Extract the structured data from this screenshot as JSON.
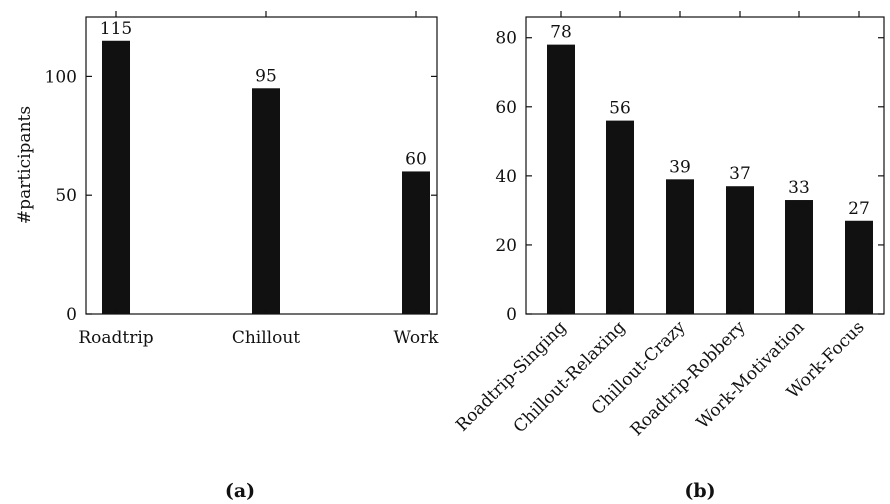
{
  "chart_data": [
    {
      "type": "bar",
      "categories": [
        "Roadtrip",
        "Chillout",
        "Work"
      ],
      "values": [
        115,
        95,
        60
      ],
      "data_labels": [
        "115",
        "95",
        "60"
      ],
      "ylabel": "#participants",
      "ylim": [
        0,
        125
      ],
      "yticks": [
        0,
        50,
        100
      ],
      "ytick_labels": [
        "0",
        "50",
        "100"
      ],
      "caption": "(a)",
      "grid": false,
      "bar_color": "#111111"
    },
    {
      "type": "bar",
      "categories": [
        "Roadtrip-Singing",
        "Chillout-Relaxing",
        "Chillout-Crazy",
        "Roadtrip-Robbery",
        "Work-Motivation",
        "Work-Focus"
      ],
      "values": [
        78,
        56,
        39,
        37,
        33,
        27
      ],
      "data_labels": [
        "78",
        "56",
        "39",
        "37",
        "33",
        "27"
      ],
      "ylim": [
        0,
        86
      ],
      "yticks": [
        0,
        20,
        40,
        60,
        80
      ],
      "ytick_labels": [
        "0",
        "20",
        "40",
        "60",
        "80"
      ],
      "caption": "(b)",
      "grid": false,
      "bar_color": "#111111"
    }
  ]
}
